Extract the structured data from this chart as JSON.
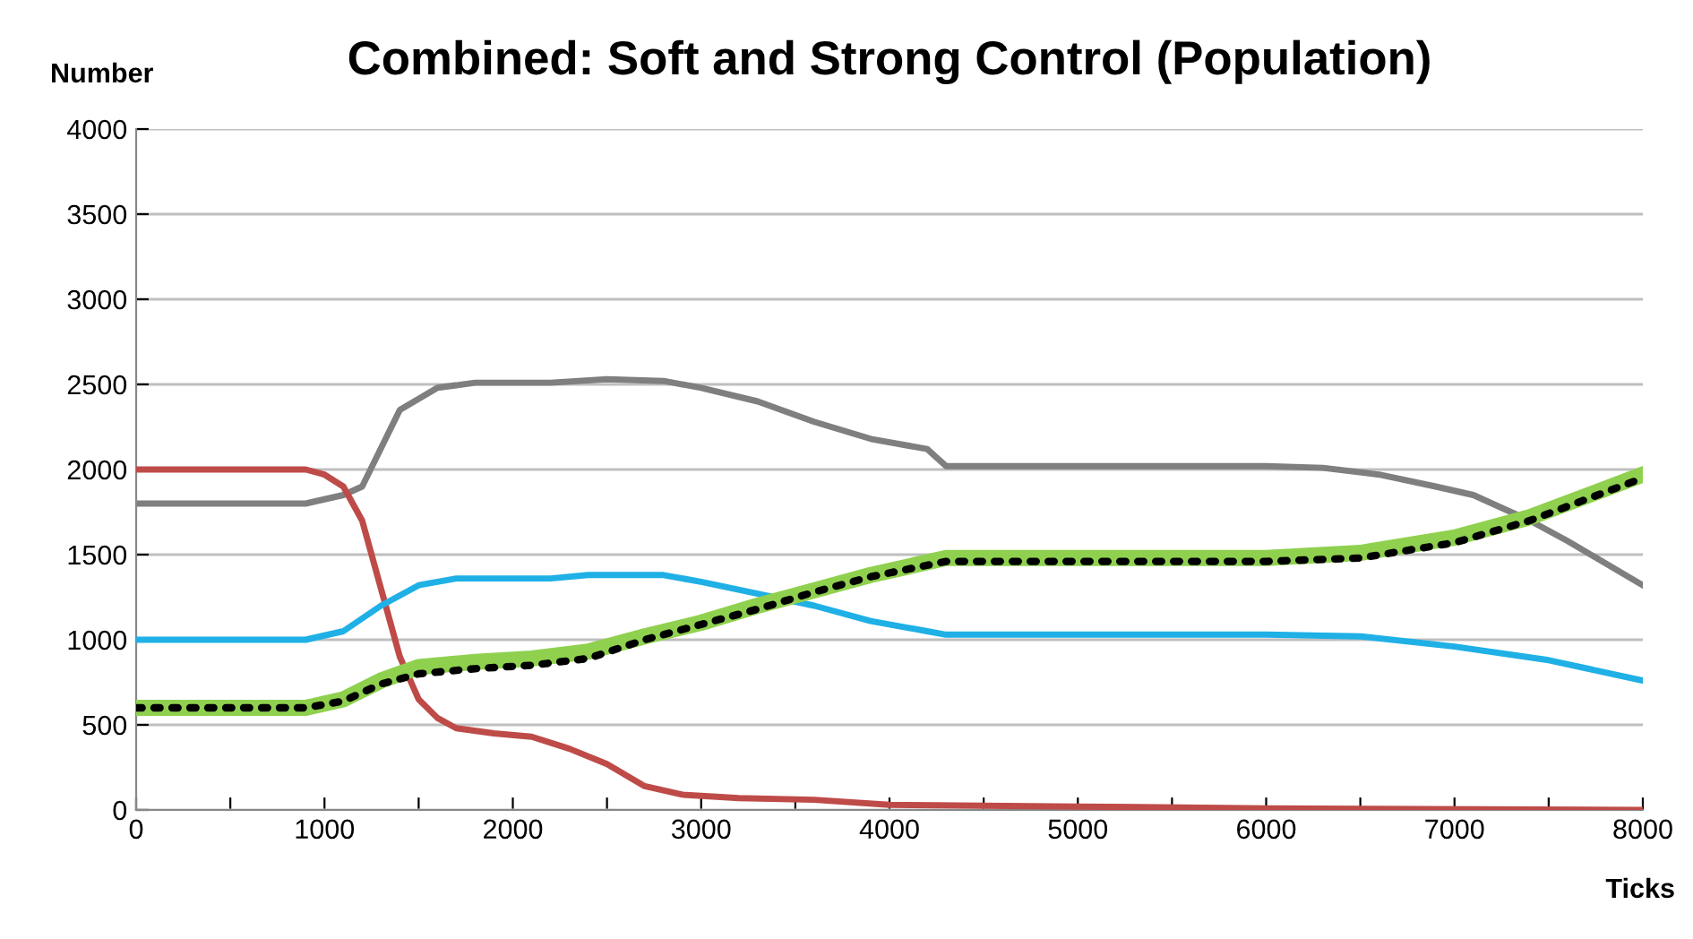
{
  "chart_data": {
    "type": "line",
    "title": "Combined: Soft and Strong Control (Population)",
    "xlabel": "Ticks",
    "ylabel": "Number",
    "xlim": [
      0,
      8000
    ],
    "ylim": [
      0,
      4000
    ],
    "xticks": [
      0,
      {
        "value": 500,
        "label": null
      },
      1000,
      {
        "value": 1500,
        "label": null
      },
      2000,
      {
        "value": 2500,
        "label": null
      },
      3000,
      {
        "value": 3500,
        "label": null
      },
      4000,
      {
        "value": 4500,
        "label": null
      },
      5000,
      {
        "value": 5500,
        "label": null
      },
      6000,
      {
        "value": 6500,
        "label": null
      },
      7000,
      {
        "value": 7500,
        "label": null
      },
      8000
    ],
    "yticks": [
      0,
      500,
      1000,
      1500,
      2000,
      2500,
      3000,
      3500,
      4000
    ],
    "grid": "y",
    "series": [
      {
        "color": "#7f7f7f",
        "line_style": "solid",
        "x": [
          0,
          900,
          1100,
          1200,
          1400,
          1600,
          1800,
          2200,
          2500,
          2800,
          3000,
          3300,
          3600,
          3900,
          4200,
          4300,
          5000,
          6000,
          6300,
          6600,
          6900,
          7100,
          7400,
          7600,
          8000
        ],
        "values": [
          1800,
          1800,
          1850,
          1900,
          2350,
          2480,
          2510,
          2510,
          2530,
          2520,
          2480,
          2400,
          2280,
          2180,
          2120,
          2020,
          2020,
          2020,
          2010,
          1970,
          1900,
          1850,
          1700,
          1580,
          1320
        ]
      },
      {
        "color": "#be4b48",
        "line_style": "solid",
        "x": [
          0,
          900,
          1000,
          1100,
          1200,
          1300,
          1400,
          1500,
          1600,
          1700,
          1900,
          2100,
          2300,
          2500,
          2700,
          2900,
          3200,
          3600,
          4000,
          5000,
          6000,
          8000
        ],
        "values": [
          2000,
          2000,
          1970,
          1900,
          1700,
          1300,
          900,
          650,
          540,
          480,
          450,
          430,
          360,
          270,
          140,
          90,
          70,
          60,
          30,
          20,
          10,
          0
        ]
      },
      {
        "color": "#1fb0e6",
        "line_style": "solid",
        "x": [
          0,
          900,
          1100,
          1300,
          1500,
          1700,
          2200,
          2400,
          2800,
          3000,
          3300,
          3600,
          3900,
          4200,
          4300,
          6000,
          6500,
          7000,
          7500,
          8000
        ],
        "values": [
          1000,
          1000,
          1050,
          1200,
          1320,
          1360,
          1360,
          1380,
          1380,
          1340,
          1270,
          1200,
          1110,
          1050,
          1030,
          1030,
          1020,
          960,
          880,
          760
        ]
      },
      {
        "color": "#8fd14f",
        "line_style": "solid",
        "x": [
          0,
          900,
          1100,
          1300,
          1500,
          1800,
          2100,
          2400,
          2700,
          3000,
          3300,
          3600,
          3900,
          4300,
          6000,
          6500,
          7000,
          7400,
          8000
        ],
        "values": [
          600,
          600,
          650,
          760,
          840,
          870,
          890,
          930,
          1020,
          1100,
          1200,
          1290,
          1380,
          1480,
          1480,
          1510,
          1600,
          1720,
          1970
        ]
      },
      {
        "color": "#000000",
        "line_style": "dotted",
        "x": [
          0,
          900,
          1100,
          1300,
          1500,
          1800,
          2100,
          2400,
          2700,
          3000,
          3300,
          3600,
          3900,
          4300,
          6000,
          6500,
          7000,
          7400,
          8000
        ],
        "values": [
          600,
          600,
          640,
          740,
          800,
          830,
          850,
          890,
          1000,
          1090,
          1180,
          1280,
          1370,
          1460,
          1460,
          1480,
          1570,
          1700,
          1950
        ]
      }
    ]
  }
}
